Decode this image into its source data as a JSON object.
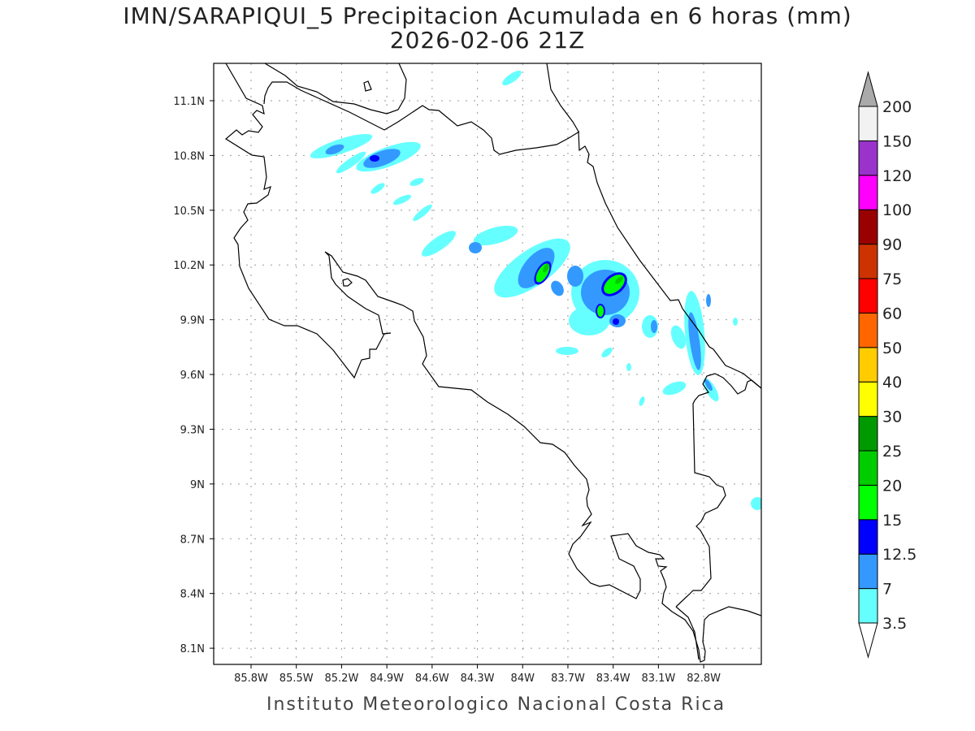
{
  "title": {
    "line1": "IMN/SARAPIQUI_5 Precipitacion Acumulada en 6 horas (mm)",
    "line2": "2026-02-06 21Z"
  },
  "footer": "Instituto Meteorologico Nacional Costa Rica",
  "axes": {
    "lon_labels": [
      "85.8W",
      "85.5W",
      "85.2W",
      "84.9W",
      "84.6W",
      "84.3W",
      "84W",
      "83.7W",
      "83.4W",
      "83.1W",
      "82.8W"
    ],
    "lon_values": [
      -85.8,
      -85.5,
      -85.2,
      -84.9,
      -84.6,
      -84.3,
      -84.0,
      -83.7,
      -83.4,
      -83.1,
      -82.8
    ],
    "lat_labels": [
      "11.1N",
      "10.8N",
      "10.5N",
      "10.2N",
      "9.9N",
      "9.6N",
      "9.3N",
      "9N",
      "8.7N",
      "8.4N",
      "8.1N"
    ],
    "lat_values": [
      11.1,
      10.8,
      10.5,
      10.2,
      9.9,
      9.6,
      9.3,
      9.0,
      8.7,
      8.4,
      8.1
    ]
  },
  "colorbar": {
    "labels": [
      "3.5",
      "7",
      "12.5",
      "15",
      "20",
      "25",
      "30",
      "40",
      "50",
      "60",
      "75",
      "90",
      "100",
      "120",
      "150",
      "200"
    ],
    "colors": [
      "#66ffff",
      "#3399ff",
      "#0000ff",
      "#00ff00",
      "#00cc00",
      "#009900",
      "#ffff00",
      "#ffcc00",
      "#ff6600",
      "#ff0000",
      "#cc3300",
      "#990000",
      "#ff00ff",
      "#9933cc",
      "#f2f2f2"
    ],
    "over_color": "#aaaaaa",
    "under_color": "#ffffff"
  }
}
